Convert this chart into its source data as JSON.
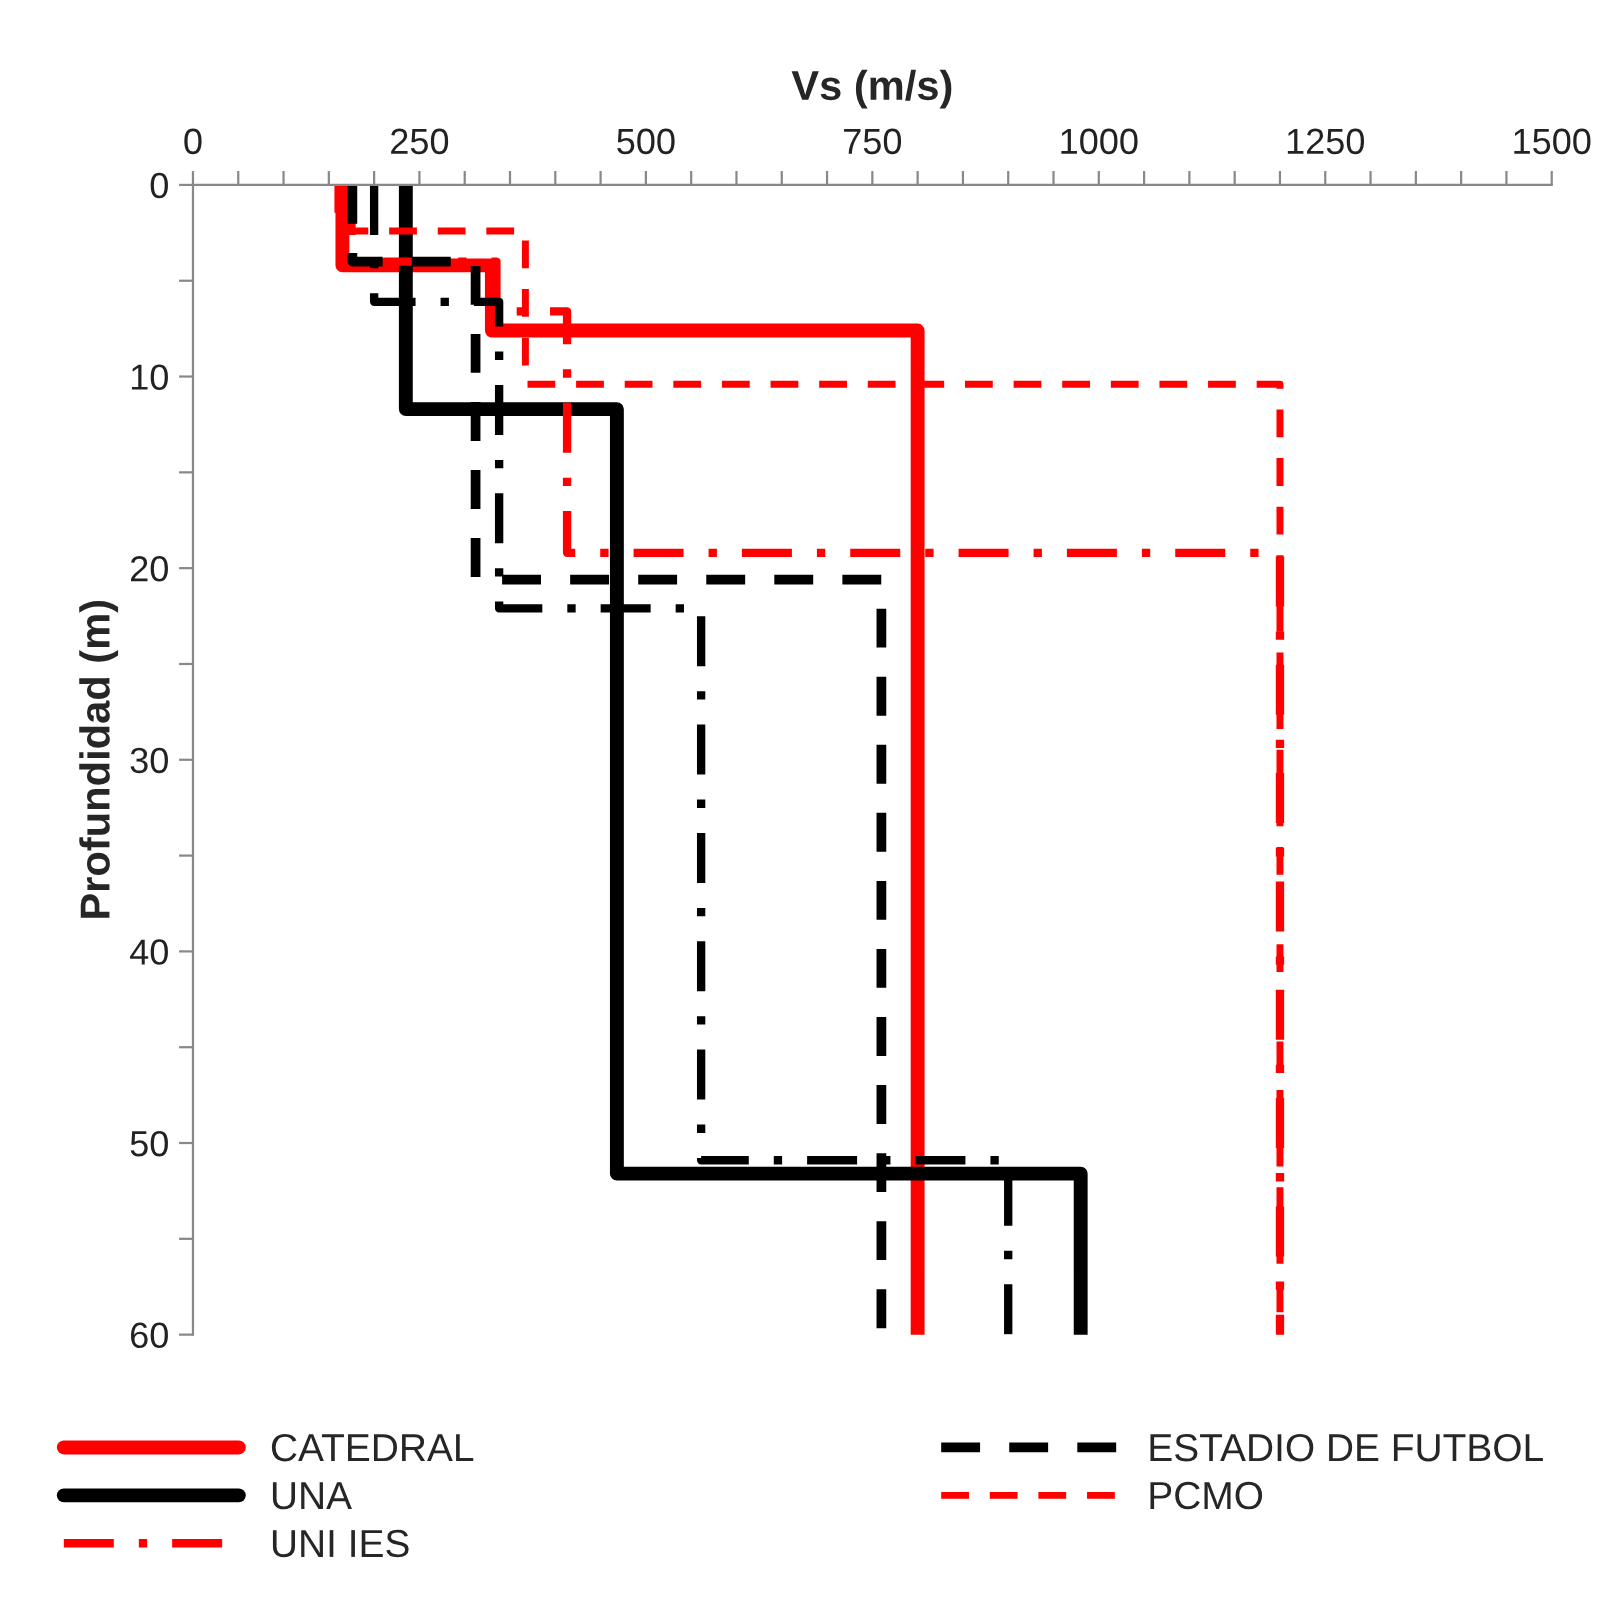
{
  "chart_data": {
    "type": "line",
    "xlabel": "Vs (m/s)",
    "ylabel": "Profundidad (m)",
    "xlim": [
      0,
      1500
    ],
    "ylim": [
      60,
      0
    ],
    "xticks": [
      0,
      {
        "value": 50,
        "label": null
      },
      {
        "value": 100,
        "label": null
      },
      {
        "value": 150,
        "label": null
      },
      {
        "value": 200,
        "label": null
      },
      250,
      {
        "value": 300,
        "label": null
      },
      {
        "value": 350,
        "label": null
      },
      {
        "value": 400,
        "label": null
      },
      {
        "value": 450,
        "label": null
      },
      500,
      {
        "value": 550,
        "label": null
      },
      {
        "value": 600,
        "label": null
      },
      {
        "value": 650,
        "label": null
      },
      {
        "value": 700,
        "label": null
      },
      750,
      {
        "value": 800,
        "label": null
      },
      {
        "value": 850,
        "label": null
      },
      {
        "value": 900,
        "label": null
      },
      {
        "value": 950,
        "label": null
      },
      1000,
      {
        "value": 1050,
        "label": null
      },
      {
        "value": 1100,
        "label": null
      },
      {
        "value": 1150,
        "label": null
      },
      {
        "value": 1200,
        "label": null
      },
      1250,
      {
        "value": 1300,
        "label": null
      },
      {
        "value": 1350,
        "label": null
      },
      {
        "value": 1400,
        "label": null
      },
      {
        "value": 1450,
        "label": null
      },
      1500
    ],
    "yticks": [
      0,
      {
        "value": 5,
        "label": null
      },
      10,
      {
        "value": 15,
        "label": null
      },
      20,
      {
        "value": 25,
        "label": null
      },
      30,
      {
        "value": 35,
        "label": null
      },
      40,
      {
        "value": 45,
        "label": null
      },
      50,
      {
        "value": 55,
        "label": null
      },
      60
    ],
    "grid": false,
    "legend": "bottom",
    "marker": "none",
    "series": [
      {
        "name": "CATEDRAL",
        "color": "#ff0000",
        "line_style": "solid",
        "x": [
          165,
          165,
          330,
          330,
          800,
          800
        ],
        "values": [
          0,
          4.2,
          4.2,
          7.6,
          7.6,
          60
        ]
      },
      {
        "name": "UNA",
        "color": "#000000",
        "line_style": "solid",
        "x": [
          235,
          235,
          468,
          468,
          980,
          980
        ],
        "values": [
          0,
          11.7,
          11.7,
          51.6,
          51.6,
          60
        ]
      },
      {
        "name": "UNI IES",
        "color": "#ff0000",
        "line_style": "dashdot",
        "x": [
          175,
          175,
          335,
          335,
          413,
          413,
          1200,
          1200
        ],
        "values": [
          0,
          4,
          4,
          6.6,
          6.6,
          19.2,
          19.2,
          60
        ]
      },
      {
        "name": "ESTADIO DE FUTBOL",
        "color": "#000000",
        "line_style": "dashed",
        "x": [
          176,
          176,
          312,
          312,
          760,
          760
        ],
        "values": [
          0,
          4,
          4,
          20.6,
          20.6,
          60
        ]
      },
      {
        "name": "PCMO",
        "color": "#ff0000",
        "line_style": "dotted",
        "x": [
          160,
          160,
          367,
          367,
          1200,
          1200
        ],
        "values": [
          0,
          2.4,
          2.4,
          10.4,
          10.4,
          60
        ]
      },
      {
        "color": "#000000",
        "line_style": "dashdot",
        "x": [
          200,
          200,
          338,
          338,
          561,
          561,
          900,
          900
        ],
        "values": [
          0,
          6.1,
          6.1,
          22.1,
          22.1,
          50.9,
          50.9,
          60
        ]
      }
    ]
  }
}
